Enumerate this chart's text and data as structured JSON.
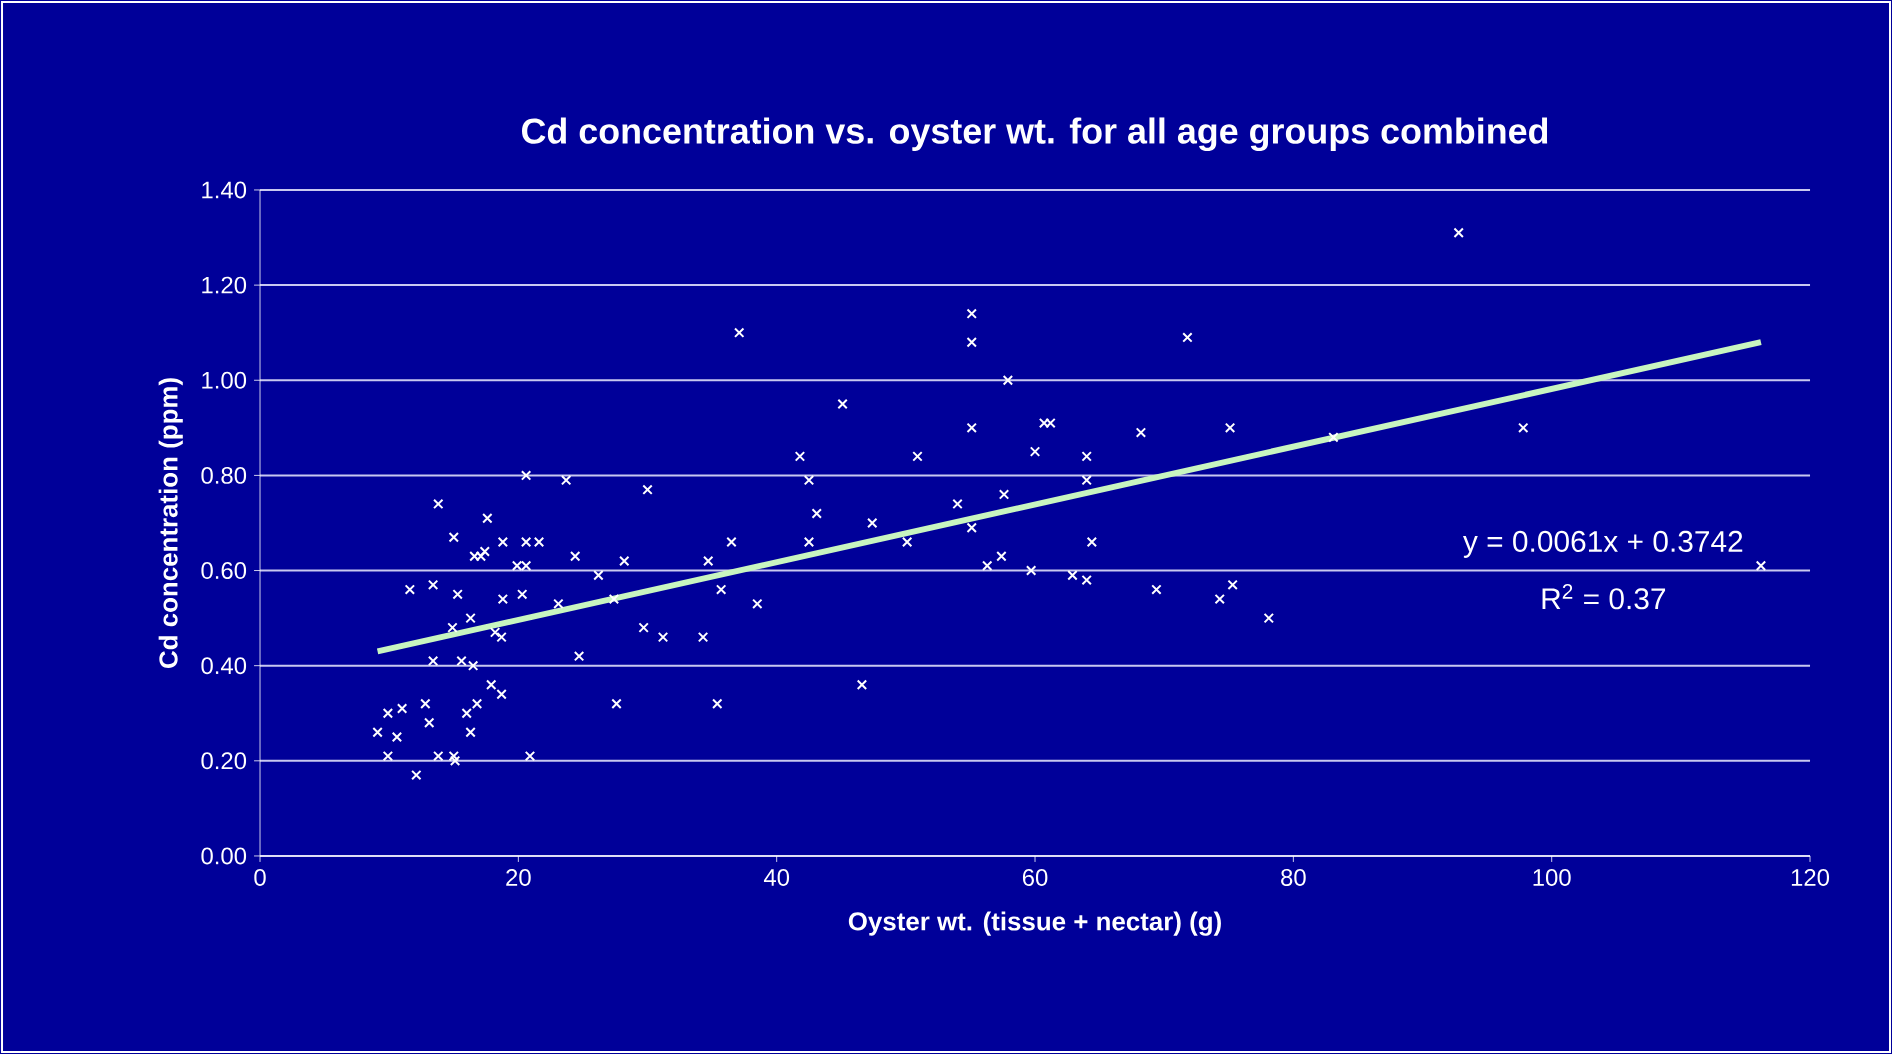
{
  "chart_data": {
    "type": "scatter",
    "title": "Cd concentration vs. oyster wt. for all age groups combined",
    "xlabel": "Oyster wt. (tissue + nectar) (g)",
    "ylabel": "Cd concentration (ppm)",
    "xlim": [
      0,
      120
    ],
    "xticks": [
      0,
      20,
      40,
      60,
      80,
      100,
      120
    ],
    "ylim": [
      0,
      1.4
    ],
    "yticks": [
      {
        "value": 0,
        "label": "0.00"
      },
      {
        "value": 0.2,
        "label": "0.20"
      },
      {
        "value": 0.4,
        "label": "0.40"
      },
      {
        "value": 0.6,
        "label": "0.60"
      },
      {
        "value": 0.8,
        "label": "0.80"
      },
      {
        "value": 1.0,
        "label": "1.00"
      },
      {
        "value": 1.2,
        "label": "1.20"
      },
      {
        "value": 1.4,
        "label": "1.40"
      }
    ],
    "grid": "y",
    "marker": "cross",
    "annotations": [
      "y = 0.0061x + 0.3742",
      "R$^{2}$ = 0.37"
    ],
    "series": [
      {
        "color": "#ffffff",
        "x": [
          20.6,
          23.7,
          13.8,
          17.6,
          15.0,
          17.1,
          16.6,
          17.4,
          18.8,
          20.6,
          21.6,
          19.9,
          20.6,
          24.4,
          28.2,
          26.2,
          11.6,
          13.4,
          15.3,
          18.8,
          20.3,
          23.1,
          27.4,
          14.9,
          16.3,
          18.2,
          18.7,
          13.4,
          15.6,
          16.5,
          24.7,
          17.9,
          16.8,
          18.7,
          27.6,
          9.9,
          11.0,
          12.8,
          13.1,
          16.0,
          9.1,
          10.6,
          16.3,
          9.9,
          13.8,
          15.0,
          15.1,
          20.9,
          12.1,
          37.1,
          45.1,
          41.8,
          42.5,
          50.9,
          30.0,
          43.1,
          47.4,
          36.5,
          34.7,
          42.5,
          50.1,
          35.7,
          38.5,
          29.7,
          31.2,
          34.3,
          46.6,
          35.4,
          55.1,
          55.1,
          71.8,
          57.9,
          55.1,
          60.7,
          61.2,
          68.2,
          75.1,
          60.0,
          64.0,
          64.0,
          54.0,
          57.6,
          55.1,
          64.4,
          56.3,
          57.4,
          59.7,
          62.9,
          64.0,
          69.4,
          74.3,
          75.3,
          78.1,
          92.8,
          83.1,
          97.8,
          116.2
        ],
        "values": [
          0.8,
          0.79,
          0.74,
          0.71,
          0.67,
          0.63,
          0.63,
          0.64,
          0.66,
          0.66,
          0.66,
          0.61,
          0.61,
          0.63,
          0.62,
          0.59,
          0.56,
          0.57,
          0.55,
          0.54,
          0.55,
          0.53,
          0.54,
          0.48,
          0.5,
          0.47,
          0.46,
          0.41,
          0.41,
          0.4,
          0.42,
          0.36,
          0.32,
          0.34,
          0.32,
          0.3,
          0.31,
          0.32,
          0.28,
          0.3,
          0.26,
          0.25,
          0.26,
          0.21,
          0.21,
          0.21,
          0.2,
          0.21,
          0.17,
          1.1,
          0.95,
          0.84,
          0.79,
          0.84,
          0.77,
          0.72,
          0.7,
          0.66,
          0.62,
          0.66,
          0.66,
          0.56,
          0.53,
          0.48,
          0.46,
          0.46,
          0.36,
          0.32,
          1.14,
          1.08,
          1.09,
          1.0,
          0.9,
          0.91,
          0.91,
          0.89,
          0.9,
          0.85,
          0.84,
          0.79,
          0.74,
          0.76,
          0.69,
          0.66,
          0.61,
          0.63,
          0.6,
          0.59,
          0.58,
          0.56,
          0.54,
          0.57,
          0.5,
          1.31,
          0.88,
          0.9,
          0.61
        ]
      },
      {
        "type": "line",
        "color": "#c8f5c0",
        "marker": "none",
        "x": [
          9.1,
          116.2
        ],
        "values": [
          0.43,
          1.08
        ]
      }
    ]
  }
}
